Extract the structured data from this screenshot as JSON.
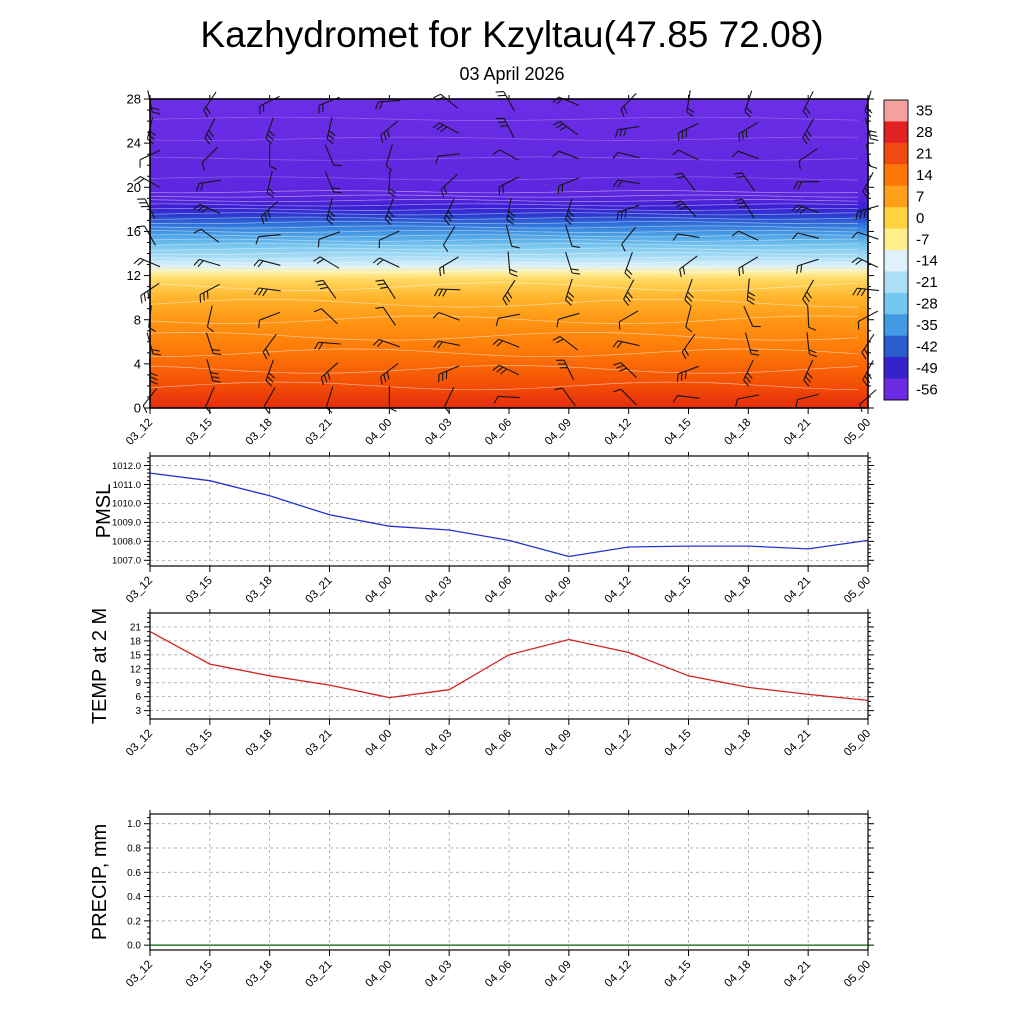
{
  "title": "Kazhydromet for Kzyltau(47.85 72.08)",
  "subtitle": "03 April 2026",
  "chart_data": [
    {
      "id": "temperature_cross_section",
      "type": "heatmap",
      "description": "Time-height temperature cross-section (deg C) with wind barbs",
      "x": [
        "03_12",
        "03_15",
        "03_18",
        "03_21",
        "04_00",
        "04_03",
        "04_06",
        "04_09",
        "04_12",
        "04_15",
        "04_18",
        "04_21",
        "05_00"
      ],
      "y_ticks": [
        "0",
        "4",
        "8",
        "12",
        "16",
        "20",
        "24",
        "28"
      ],
      "y_tick_values": [
        0,
        4,
        8,
        12,
        16,
        20,
        24,
        28
      ],
      "y_range": [
        0,
        28
      ],
      "colorbar_labels": [
        "35",
        "28",
        "21",
        "14",
        "7",
        "0",
        "-7",
        "-14",
        "-21",
        "-28",
        "-35",
        "-42",
        "-49",
        "-56"
      ],
      "colorbar_colors": [
        "#f2a0a0",
        "#e22222",
        "#f04a10",
        "#fd7708",
        "#ffa01a",
        "#ffd23e",
        "#fff08a",
        "#dff2fb",
        "#aadff5",
        "#74c6ef",
        "#429ae2",
        "#2a5cd0",
        "#3522cc",
        "#6d2ce4"
      ],
      "fill_stops": [
        {
          "h": 0,
          "color": "#e62b0e"
        },
        {
          "h": 2,
          "color": "#f34d06"
        },
        {
          "h": 5,
          "color": "#fd7708"
        },
        {
          "h": 8,
          "color": "#ff9714"
        },
        {
          "h": 10,
          "color": "#ffb52c"
        },
        {
          "h": 11.6,
          "color": "#ffd75e"
        },
        {
          "h": 12.3,
          "color": "#fef0a6"
        },
        {
          "h": 12.9,
          "color": "#daf0fa"
        },
        {
          "h": 13.6,
          "color": "#abdef6"
        },
        {
          "h": 14.6,
          "color": "#7cc8ef"
        },
        {
          "h": 15.6,
          "color": "#4ea4e6"
        },
        {
          "h": 16.6,
          "color": "#2f74da"
        },
        {
          "h": 17.4,
          "color": "#2a3ed0"
        },
        {
          "h": 18.2,
          "color": "#3c1fd4"
        },
        {
          "h": 19.2,
          "color": "#5d26de"
        },
        {
          "h": 28,
          "color": "#6c2ee6"
        }
      ],
      "wind_barbs": {
        "rows": 12,
        "cols": 13,
        "color": "#151515"
      },
      "contours": {
        "color": "#ffffff",
        "lower": [
          2,
          3.5,
          5,
          6.5,
          8,
          9.5,
          11
        ],
        "dense": {
          "start": 12.4,
          "end": 19.6,
          "step": 0.4
        },
        "upper": [
          20.8,
          22.6,
          24.4,
          26.2
        ]
      }
    },
    {
      "id": "pmsl",
      "type": "line",
      "ylabel": "PMSL",
      "color": "#2233cc",
      "x": [
        "03_12",
        "03_15",
        "03_18",
        "03_21",
        "04_00",
        "04_03",
        "04_06",
        "04_09",
        "04_12",
        "04_15",
        "04_18",
        "04_21",
        "05_00"
      ],
      "values": [
        1011.6,
        1011.2,
        1010.4,
        1009.4,
        1008.8,
        1008.6,
        1008.05,
        1007.2,
        1007.7,
        1007.75,
        1007.75,
        1007.6,
        1008.05
      ],
      "y_tick_values": [
        1012,
        1011,
        1010,
        1009,
        1008,
        1007
      ],
      "y_tick_labels": [
        "1012.0",
        "1011.0",
        "1010.0",
        "1009.0",
        "1008.0",
        "1007.0"
      ],
      "y_minor_step": 0.2,
      "y_range": [
        1006.7,
        1012.5
      ]
    },
    {
      "id": "temp_2m",
      "type": "line",
      "ylabel": "TEMP at 2 M",
      "color": "#d42222",
      "x": [
        "03_12",
        "03_15",
        "03_18",
        "03_21",
        "04_00",
        "04_03",
        "04_06",
        "04_09",
        "04_12",
        "04_15",
        "04_18",
        "04_21",
        "05_00"
      ],
      "values": [
        20.0,
        13.0,
        10.5,
        8.5,
        5.8,
        7.5,
        15.0,
        18.3,
        15.5,
        10.5,
        8.0,
        6.5,
        5.2
      ],
      "y_tick_values": [
        21,
        18,
        15,
        12,
        9,
        6,
        3
      ],
      "y_tick_labels": [
        "21",
        "18",
        "15",
        "12",
        "9",
        "6",
        "3"
      ],
      "y_minor_step": 1,
      "y_range": [
        1.2,
        24
      ]
    },
    {
      "id": "precip",
      "type": "line",
      "ylabel": "PRECIP, mm",
      "color": "#006400",
      "x": [
        "03_12",
        "03_15",
        "03_18",
        "03_21",
        "04_00",
        "04_03",
        "04_06",
        "04_09",
        "04_12",
        "04_15",
        "04_18",
        "04_21",
        "05_00"
      ],
      "values": [
        0,
        0,
        0,
        0,
        0,
        0,
        0,
        0,
        0,
        0,
        0,
        0,
        0
      ],
      "y_tick_values": [
        1.0,
        0.8,
        0.6,
        0.4,
        0.2,
        0.0
      ],
      "y_tick_labels": [
        "1.0",
        "0.8",
        "0.6",
        "0.4",
        "0.2",
        "0.0"
      ],
      "y_minor_step": 0.05,
      "y_range": [
        -0.04,
        1.08
      ]
    }
  ]
}
